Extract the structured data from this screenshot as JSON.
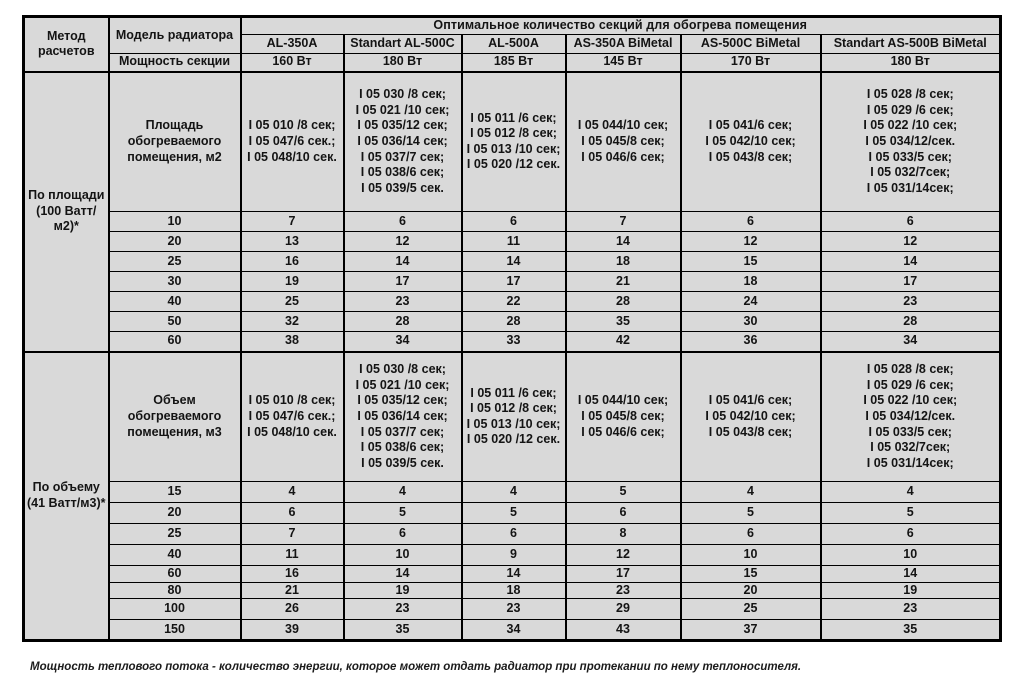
{
  "chart_data": {
    "type": "table",
    "title": "Оптимальное количество секций для обогрева помещения",
    "header": {
      "method_label": "Метод расчетов",
      "model_label": "Модель радиатора",
      "power_label": "Мощность секции",
      "span_title": "Оптимальное количество секций для обогрева помещения",
      "models": [
        "AL-350A",
        "Standart AL-500C",
        "AL-500A",
        "AS-350A BiMetal",
        "AS-500C BiMetal",
        "Standart AS-500B BiMetal"
      ],
      "powers": [
        "160 Вт",
        "180 Вт",
        "185 Вт",
        "145 Вт",
        "170 Вт",
        "180 Вт"
      ]
    },
    "articles": [
      [
        "I 05 010 /8 сек;",
        "I 05 047/6 сек.;",
        "I 05 048/10 сек."
      ],
      [
        "I 05 030 /8 сек;",
        "I 05 021 /10 сек;",
        "I 05 035/12 сек;",
        "I 05 036/14 сек;",
        "I 05 037/7 сек;",
        "I 05 038/6 сек;",
        "I 05 039/5 сек."
      ],
      [
        "I 05 011 /6 сек;",
        "I 05 012 /8 сек;",
        "I 05 013 /10 сек;",
        "I 05 020 /12 сек."
      ],
      [
        "I 05 044/10 сек;",
        "I 05 045/8 сек;",
        "I 05 046/6 сек;"
      ],
      [
        "I 05 041/6 сек;",
        "I 05 042/10 сек;",
        "I 05 043/8 сек;"
      ],
      [
        "I 05 028 /8 сек;",
        "I 05 029 /6 сек;",
        "I 05 022 /10 сек;",
        "I 05 034/12/сек.",
        "I 05 033/5 сек;",
        "I 05 032/7сек;",
        "I 05 031/14сек;"
      ]
    ],
    "blocks": [
      {
        "method": "По площади (100 Ватт/м2)*",
        "dimension_label": "Площадь обогреваемого помещения, м2",
        "rows": [
          {
            "size": "10",
            "values": [
              7,
              6,
              6,
              7,
              6,
              6
            ]
          },
          {
            "size": "20",
            "values": [
              13,
              12,
              11,
              14,
              12,
              12
            ]
          },
          {
            "size": "25",
            "values": [
              16,
              14,
              14,
              18,
              15,
              14
            ]
          },
          {
            "size": "30",
            "values": [
              19,
              17,
              17,
              21,
              18,
              17
            ]
          },
          {
            "size": "40",
            "values": [
              25,
              23,
              22,
              28,
              24,
              23
            ]
          },
          {
            "size": "50",
            "values": [
              32,
              28,
              28,
              35,
              30,
              28
            ]
          },
          {
            "size": "60",
            "values": [
              38,
              34,
              33,
              42,
              36,
              34
            ]
          }
        ]
      },
      {
        "method": "По объему (41 Ватт/м3)*",
        "dimension_label": "Объем обогреваемого помещения, м3",
        "rows": [
          {
            "size": "15",
            "values": [
              4,
              4,
              4,
              5,
              4,
              4
            ]
          },
          {
            "size": "20",
            "values": [
              6,
              5,
              5,
              6,
              5,
              5
            ]
          },
          {
            "size": "25",
            "values": [
              7,
              6,
              6,
              8,
              6,
              6
            ]
          },
          {
            "size": "40",
            "values": [
              11,
              10,
              9,
              12,
              10,
              10
            ]
          },
          {
            "size": "60",
            "values": [
              16,
              14,
              14,
              17,
              15,
              14
            ]
          },
          {
            "size": "80",
            "values": [
              21,
              19,
              18,
              23,
              20,
              19
            ]
          },
          {
            "size": "100",
            "values": [
              26,
              23,
              23,
              29,
              25,
              23
            ]
          },
          {
            "size": "150",
            "values": [
              39,
              35,
              34,
              43,
              37,
              35
            ]
          }
        ]
      }
    ],
    "footnote": "Мощность теплового потока - количество энергии, которое может отдать радиатор при протекании по нему теплоносителя."
  },
  "colors": {
    "red": "#d22a22",
    "green": "#24a956",
    "gray": "#d9d9d9",
    "border": "#000000"
  }
}
